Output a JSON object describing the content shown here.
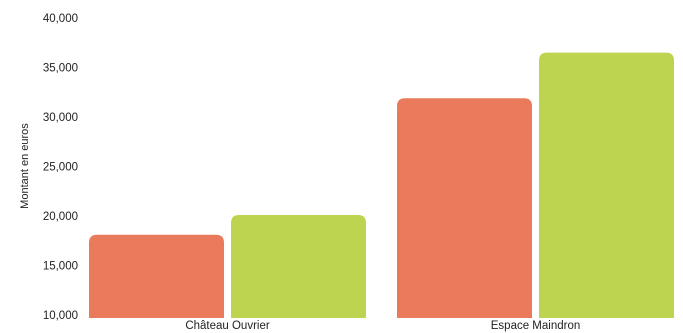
{
  "chart_data": {
    "type": "bar",
    "title": "",
    "xlabel": "",
    "ylabel": "Montant en euros",
    "categories": [
      "Château Ouvrier",
      "Espace Maindron"
    ],
    "series": [
      {
        "values": [
          18100,
          31900
        ],
        "color": "#e97a5b"
      },
      {
        "values": [
          20100,
          36500
        ],
        "color": "#bcd44f"
      }
    ],
    "ylim": [
      10000,
      40000
    ],
    "yticks": [
      10000,
      15000,
      20000,
      25000,
      30000,
      35000,
      40000
    ],
    "ytick_labels": [
      "10,000",
      "15,000",
      "20,000",
      "25,000",
      "30,000",
      "35,000",
      "40,000"
    ],
    "grid": false,
    "legend": "none"
  }
}
